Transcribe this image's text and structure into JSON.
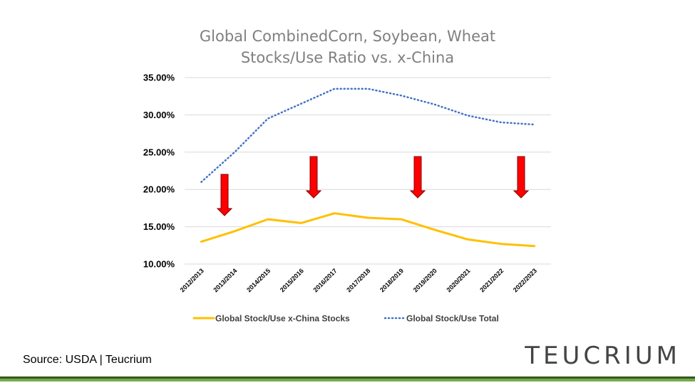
{
  "chart_data": {
    "type": "line",
    "title_lines": [
      "Global CombinedCorn, Soybean, Wheat",
      "Stocks/Use Ratio vs. x-China"
    ],
    "categories": [
      "2012/2013",
      "2013/2014",
      "2014/2015",
      "2015/2016",
      "2016/2017",
      "2017/2018",
      "2018/2019",
      "2019/2020",
      "2020/2021",
      "2021/2022",
      "2022/2023"
    ],
    "y_ticks": [
      "35.00%",
      "30.00%",
      "25.00%",
      "20.00%",
      "15.00%",
      "10.00%"
    ],
    "ylim": [
      10,
      35
    ],
    "series": [
      {
        "name": "Global Stock/Use x-China Stocks",
        "color": "#ffc000",
        "style": "solid",
        "values": [
          13.0,
          14.4,
          16.0,
          15.5,
          16.8,
          16.2,
          16.0,
          14.6,
          13.3,
          12.7,
          12.4
        ]
      },
      {
        "name": "Global Stock/Use Total",
        "color": "#4472c4",
        "style": "dotted",
        "values": [
          21.0,
          25.0,
          29.5,
          31.5,
          33.5,
          33.5,
          32.6,
          31.4,
          29.9,
          29.0,
          28.7
        ]
      }
    ],
    "legend_position": "bottom",
    "grid": true,
    "annotations": {
      "down_arrows": 4,
      "arrow_color": "#ff0000"
    }
  },
  "source_note": "Source: USDA | Teucrium",
  "brand": "TEUCRIUM"
}
